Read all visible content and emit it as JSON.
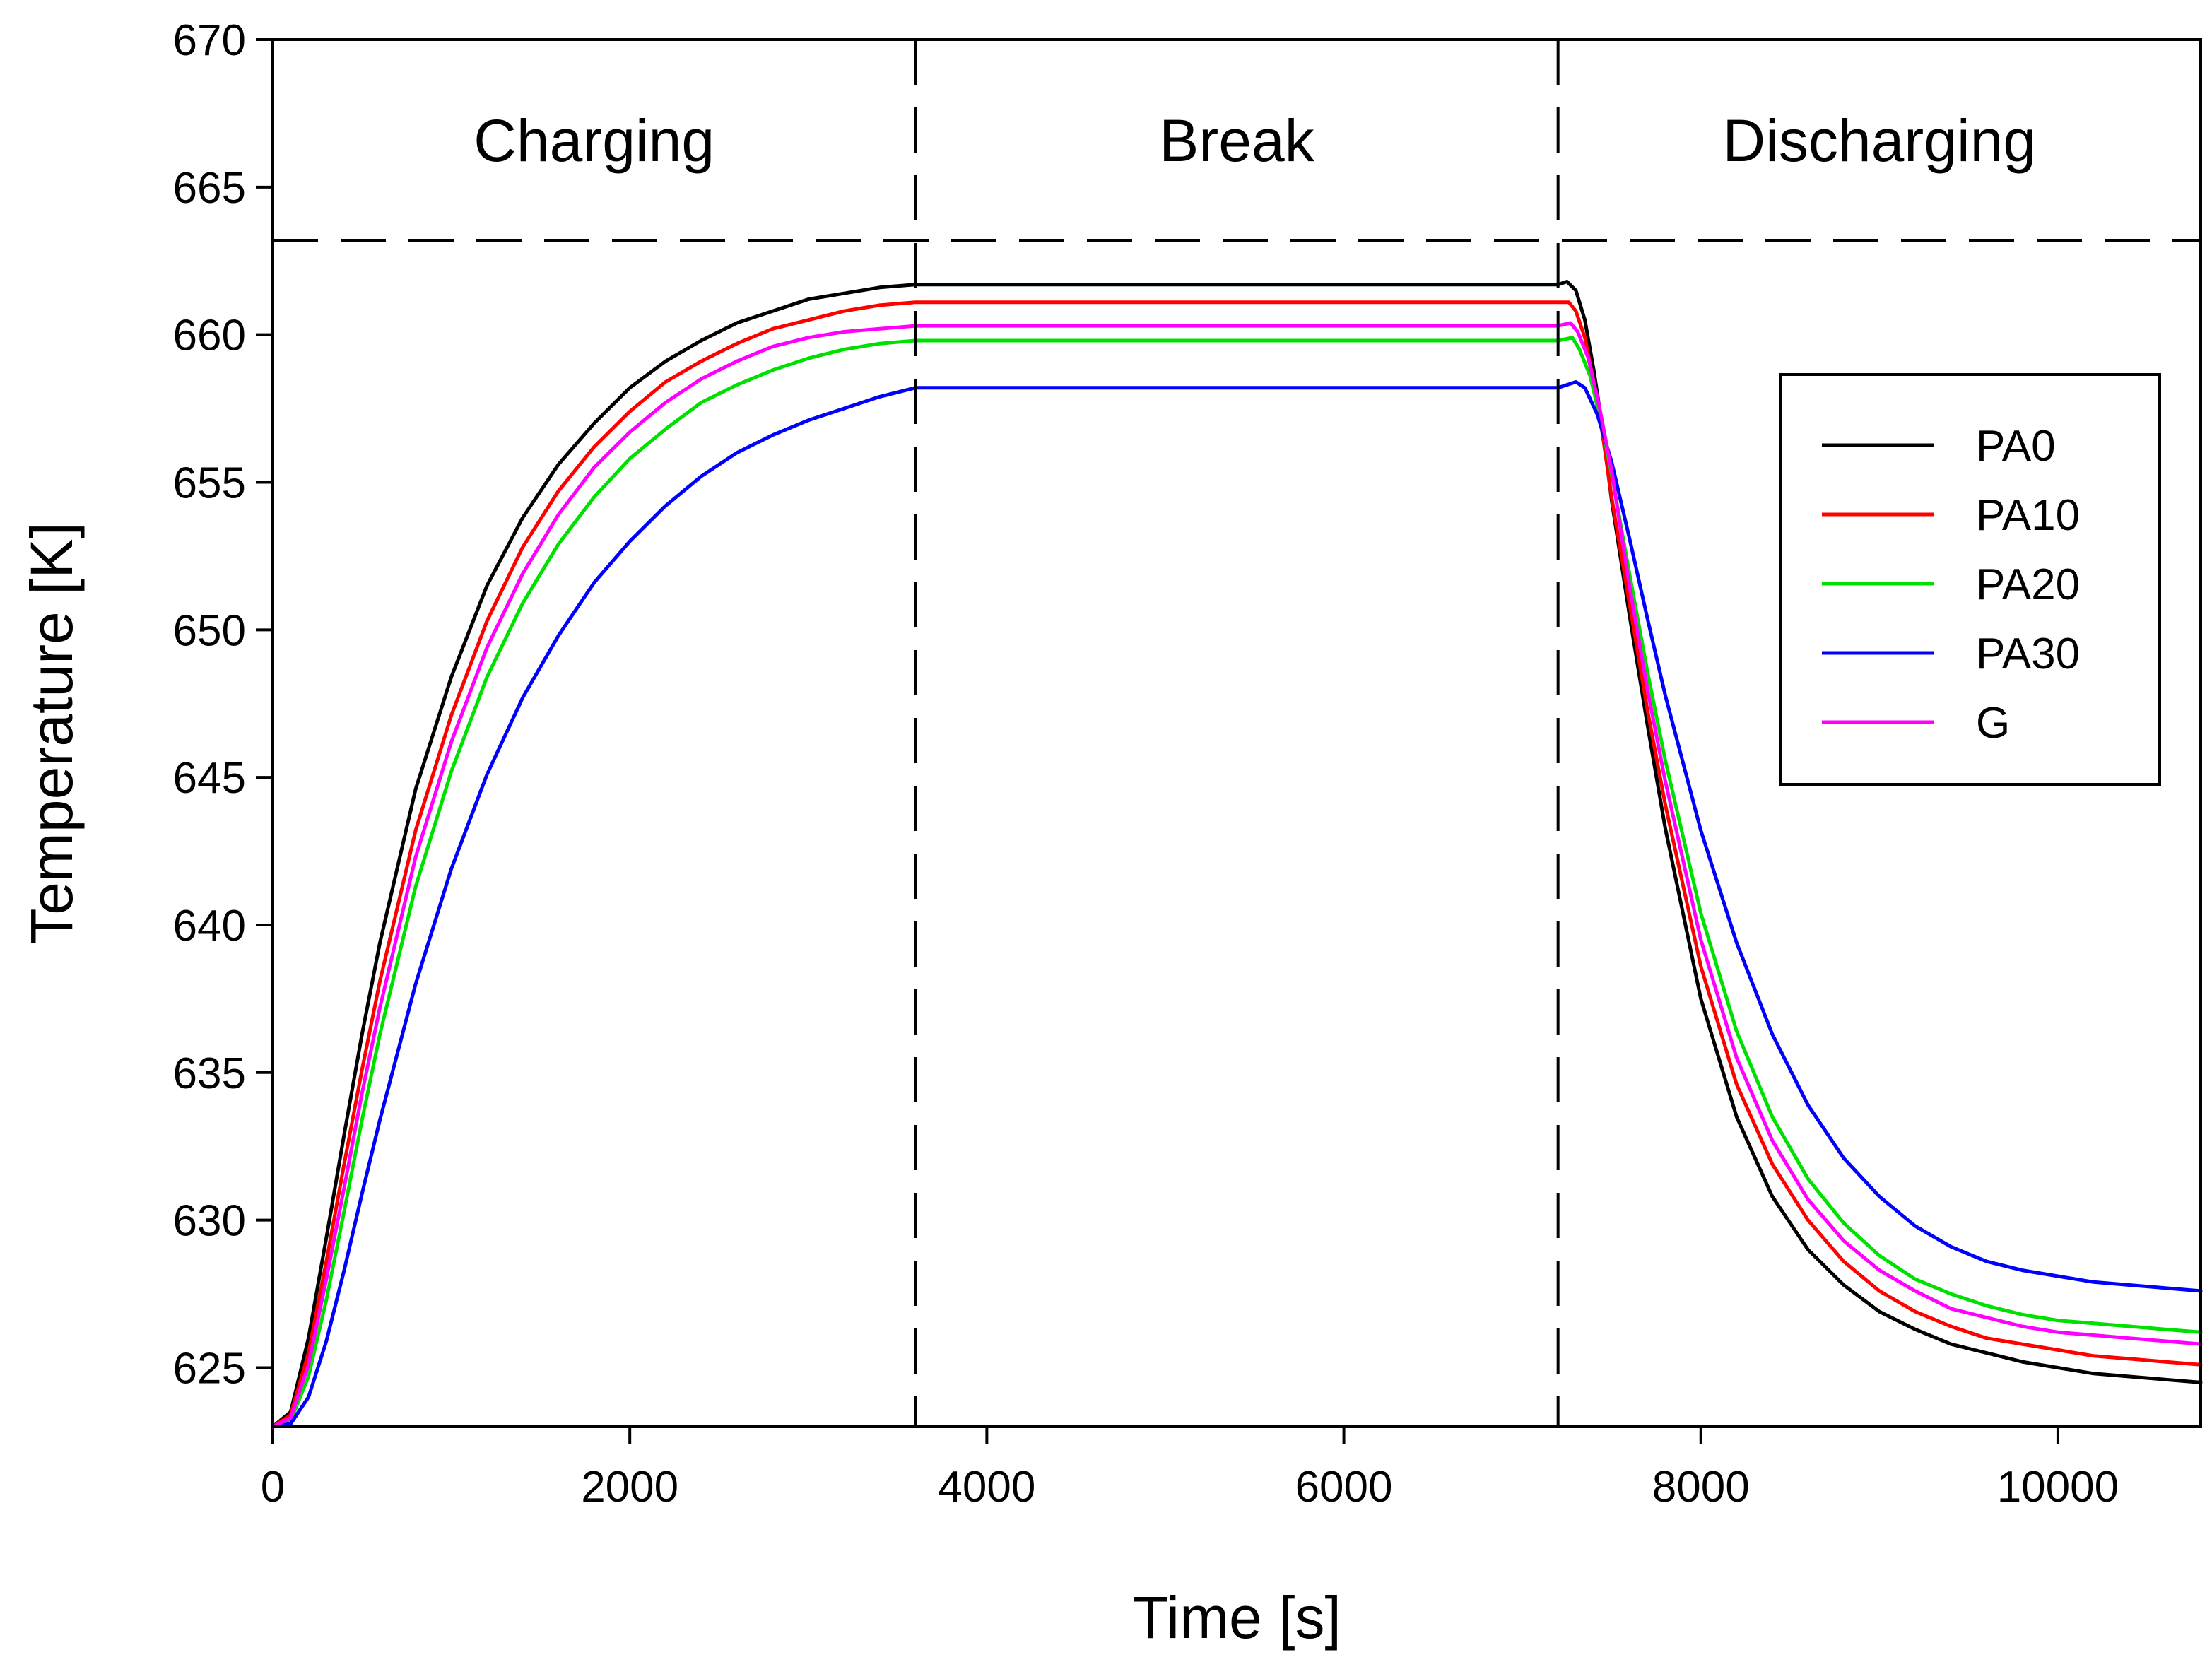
{
  "chart_data": {
    "type": "line",
    "title": "",
    "xlabel": "Time [s]",
    "ylabel": "Temperature [K]",
    "xlim": [
      0,
      10800
    ],
    "ylim": [
      623,
      670
    ],
    "xticks": [
      0,
      2000,
      4000,
      6000,
      8000,
      10000
    ],
    "yticks": [
      625,
      630,
      635,
      640,
      645,
      650,
      655,
      660,
      665,
      670
    ],
    "grid": false,
    "legend_position": "right",
    "phases": [
      {
        "label": "Charging",
        "start": 0,
        "end": 3600
      },
      {
        "label": "Break",
        "start": 3600,
        "end": 7200
      },
      {
        "label": "Discharging",
        "start": 7200,
        "end": 10800
      }
    ],
    "phase_divider_y": 663.2,
    "series": [
      {
        "name": "PA0",
        "color": "#000000",
        "points": [
          [
            0,
            623
          ],
          [
            100,
            623.5
          ],
          [
            200,
            626
          ],
          [
            300,
            629.4
          ],
          [
            400,
            632.9
          ],
          [
            500,
            636.3
          ],
          [
            600,
            639.4
          ],
          [
            800,
            644.6
          ],
          [
            1000,
            648.4
          ],
          [
            1200,
            651.5
          ],
          [
            1400,
            653.8
          ],
          [
            1600,
            655.6
          ],
          [
            1800,
            657
          ],
          [
            2000,
            658.2
          ],
          [
            2200,
            659.1
          ],
          [
            2400,
            659.8
          ],
          [
            2600,
            660.4
          ],
          [
            2800,
            660.8
          ],
          [
            3000,
            661.2
          ],
          [
            3200,
            661.4
          ],
          [
            3400,
            661.6
          ],
          [
            3600,
            661.7
          ],
          [
            7200,
            661.7
          ],
          [
            7250,
            661.8
          ],
          [
            7300,
            661.5
          ],
          [
            7350,
            660.5
          ],
          [
            7400,
            658.8
          ],
          [
            7450,
            656.8
          ],
          [
            7500,
            654.4
          ],
          [
            7600,
            650.5
          ],
          [
            7700,
            646.8
          ],
          [
            7800,
            643.3
          ],
          [
            8000,
            637.5
          ],
          [
            8200,
            633.5
          ],
          [
            8400,
            630.8
          ],
          [
            8600,
            629
          ],
          [
            8800,
            627.8
          ],
          [
            9000,
            626.9
          ],
          [
            9200,
            626.3
          ],
          [
            9400,
            625.8
          ],
          [
            9600,
            625.5
          ],
          [
            9800,
            625.2
          ],
          [
            10000,
            625
          ],
          [
            10200,
            624.8
          ],
          [
            10400,
            624.7
          ],
          [
            10600,
            624.6
          ],
          [
            10800,
            624.5
          ]
        ]
      },
      {
        "name": "PA10",
        "color": "#ff0000",
        "points": [
          [
            0,
            623
          ],
          [
            100,
            623.4
          ],
          [
            200,
            625.5
          ],
          [
            300,
            628.6
          ],
          [
            400,
            631.9
          ],
          [
            500,
            635.1
          ],
          [
            600,
            638.1
          ],
          [
            800,
            643.2
          ],
          [
            1000,
            647.1
          ],
          [
            1200,
            650.3
          ],
          [
            1400,
            652.8
          ],
          [
            1600,
            654.7
          ],
          [
            1800,
            656.2
          ],
          [
            2000,
            657.4
          ],
          [
            2200,
            658.4
          ],
          [
            2400,
            659.1
          ],
          [
            2600,
            659.7
          ],
          [
            2800,
            660.2
          ],
          [
            3000,
            660.5
          ],
          [
            3200,
            660.8
          ],
          [
            3400,
            661
          ],
          [
            3600,
            661.1
          ],
          [
            7200,
            661.1
          ],
          [
            7260,
            661.1
          ],
          [
            7300,
            660.8
          ],
          [
            7350,
            659.9
          ],
          [
            7400,
            658.4
          ],
          [
            7450,
            656.6
          ],
          [
            7500,
            654.5
          ],
          [
            7600,
            650.9
          ],
          [
            7700,
            647.3
          ],
          [
            7800,
            644.1
          ],
          [
            8000,
            638.6
          ],
          [
            8200,
            634.6
          ],
          [
            8400,
            631.9
          ],
          [
            8600,
            630
          ],
          [
            8800,
            628.6
          ],
          [
            9000,
            627.6
          ],
          [
            9200,
            626.9
          ],
          [
            9400,
            626.4
          ],
          [
            9600,
            626
          ],
          [
            9800,
            625.8
          ],
          [
            10000,
            625.6
          ],
          [
            10200,
            625.4
          ],
          [
            10400,
            625.3
          ],
          [
            10600,
            625.2
          ],
          [
            10800,
            625.1
          ]
        ]
      },
      {
        "name": "PA20",
        "color": "#00e000",
        "points": [
          [
            0,
            623
          ],
          [
            100,
            623.2
          ],
          [
            200,
            624.7
          ],
          [
            300,
            627.3
          ],
          [
            400,
            630.3
          ],
          [
            500,
            633.4
          ],
          [
            600,
            636.3
          ],
          [
            800,
            641.3
          ],
          [
            1000,
            645.2
          ],
          [
            1200,
            648.4
          ],
          [
            1400,
            650.9
          ],
          [
            1600,
            652.9
          ],
          [
            1800,
            654.5
          ],
          [
            2000,
            655.8
          ],
          [
            2200,
            656.8
          ],
          [
            2400,
            657.7
          ],
          [
            2600,
            658.3
          ],
          [
            2800,
            658.8
          ],
          [
            3000,
            659.2
          ],
          [
            3200,
            659.5
          ],
          [
            3400,
            659.7
          ],
          [
            3600,
            659.8
          ],
          [
            7200,
            659.8
          ],
          [
            7280,
            659.9
          ],
          [
            7320,
            659.5
          ],
          [
            7380,
            658.6
          ],
          [
            7450,
            656.8
          ],
          [
            7500,
            655.3
          ],
          [
            7600,
            651.9
          ],
          [
            7700,
            648.6
          ],
          [
            7800,
            645.6
          ],
          [
            8000,
            640.4
          ],
          [
            8200,
            636.4
          ],
          [
            8400,
            633.5
          ],
          [
            8600,
            631.4
          ],
          [
            8800,
            629.9
          ],
          [
            9000,
            628.8
          ],
          [
            9200,
            628
          ],
          [
            9400,
            627.5
          ],
          [
            9600,
            627.1
          ],
          [
            9800,
            626.8
          ],
          [
            10000,
            626.6
          ],
          [
            10200,
            626.5
          ],
          [
            10400,
            626.4
          ],
          [
            10600,
            626.3
          ],
          [
            10800,
            626.2
          ]
        ]
      },
      {
        "name": "PA30",
        "color": "#0000ff",
        "points": [
          [
            0,
            623
          ],
          [
            100,
            623.1
          ],
          [
            200,
            624
          ],
          [
            300,
            625.9
          ],
          [
            400,
            628.3
          ],
          [
            500,
            630.9
          ],
          [
            600,
            633.4
          ],
          [
            800,
            638
          ],
          [
            1000,
            641.9
          ],
          [
            1200,
            645.1
          ],
          [
            1400,
            647.7
          ],
          [
            1600,
            649.8
          ],
          [
            1800,
            651.6
          ],
          [
            2000,
            653
          ],
          [
            2200,
            654.2
          ],
          [
            2400,
            655.2
          ],
          [
            2600,
            656
          ],
          [
            2800,
            656.6
          ],
          [
            3000,
            657.1
          ],
          [
            3200,
            657.5
          ],
          [
            3400,
            657.9
          ],
          [
            3600,
            658.2
          ],
          [
            7200,
            658.2
          ],
          [
            7300,
            658.4
          ],
          [
            7350,
            658.2
          ],
          [
            7420,
            657.3
          ],
          [
            7500,
            655.7
          ],
          [
            7600,
            653.1
          ],
          [
            7700,
            650.4
          ],
          [
            7800,
            647.8
          ],
          [
            8000,
            643.2
          ],
          [
            8200,
            639.4
          ],
          [
            8400,
            636.3
          ],
          [
            8600,
            633.9
          ],
          [
            8800,
            632.1
          ],
          [
            9000,
            630.8
          ],
          [
            9200,
            629.8
          ],
          [
            9400,
            629.1
          ],
          [
            9600,
            628.6
          ],
          [
            9800,
            628.3
          ],
          [
            10000,
            628.1
          ],
          [
            10200,
            627.9
          ],
          [
            10400,
            627.8
          ],
          [
            10600,
            627.7
          ],
          [
            10800,
            627.6
          ]
        ]
      },
      {
        "name": "G",
        "color": "#ff00ff",
        "points": [
          [
            0,
            623
          ],
          [
            100,
            623.3
          ],
          [
            200,
            625.1
          ],
          [
            300,
            628
          ],
          [
            400,
            631.1
          ],
          [
            500,
            634.3
          ],
          [
            600,
            637.2
          ],
          [
            800,
            642.3
          ],
          [
            1000,
            646.2
          ],
          [
            1200,
            649.4
          ],
          [
            1400,
            651.9
          ],
          [
            1600,
            653.9
          ],
          [
            1800,
            655.5
          ],
          [
            2000,
            656.7
          ],
          [
            2200,
            657.7
          ],
          [
            2400,
            658.5
          ],
          [
            2600,
            659.1
          ],
          [
            2800,
            659.6
          ],
          [
            3000,
            659.9
          ],
          [
            3200,
            660.1
          ],
          [
            3400,
            660.2
          ],
          [
            3600,
            660.3
          ],
          [
            7200,
            660.3
          ],
          [
            7270,
            660.4
          ],
          [
            7310,
            660.1
          ],
          [
            7370,
            659.2
          ],
          [
            7430,
            657.6
          ],
          [
            7500,
            655.4
          ],
          [
            7600,
            651.5
          ],
          [
            7700,
            648
          ],
          [
            7800,
            644.9
          ],
          [
            8000,
            639.5
          ],
          [
            8200,
            635.5
          ],
          [
            8400,
            632.7
          ],
          [
            8600,
            630.7
          ],
          [
            8800,
            629.3
          ],
          [
            9000,
            628.3
          ],
          [
            9200,
            627.6
          ],
          [
            9400,
            627
          ],
          [
            9600,
            626.7
          ],
          [
            9800,
            626.4
          ],
          [
            10000,
            626.2
          ],
          [
            10200,
            626.1
          ],
          [
            10400,
            626
          ],
          [
            10600,
            625.9
          ],
          [
            10800,
            625.8
          ]
        ]
      }
    ]
  }
}
